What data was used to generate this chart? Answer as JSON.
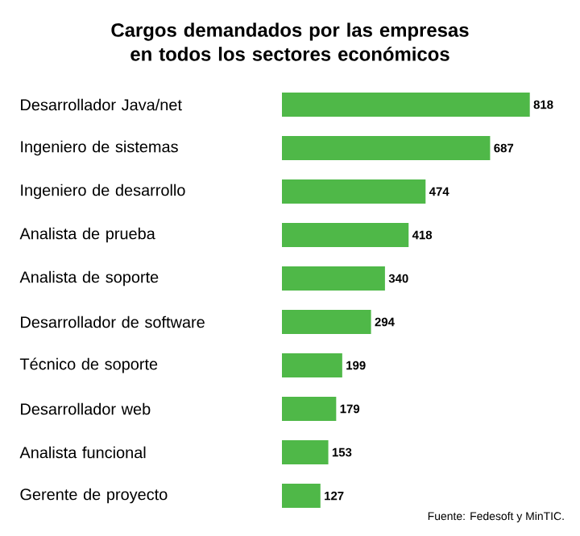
{
  "chart_data": {
    "type": "bar",
    "orientation": "horizontal",
    "title": "Cargos demandados por las empresas\nen todos los sectores económicos",
    "categories": [
      "Desarrollador Java/net",
      "Ingeniero de sistemas",
      "Ingeniero de desarrollo",
      "Analista de prueba",
      "Analista de soporte",
      "Desarrollador de software",
      "Técnico de soporte",
      "Desarrollador web",
      "Analista funcional",
      "Gerente de proyecto"
    ],
    "values": [
      818,
      687,
      474,
      418,
      340,
      294,
      199,
      179,
      153,
      127
    ],
    "color": "#4fb848",
    "data_labels": true,
    "annotations": [
      "Fuente: Fedesoft y MinTIC."
    ]
  }
}
